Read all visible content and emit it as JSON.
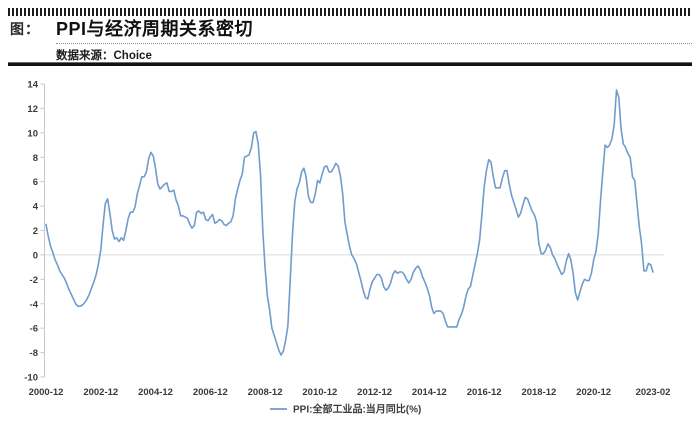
{
  "header": {
    "figure_label": "图：",
    "title": "PPI与经济周期关系密切",
    "source_label": "数据来源：",
    "source_value": "Choice"
  },
  "chart_data": {
    "type": "line",
    "series_name": "PPI:全部工业品:当月同比(%)",
    "x_start": "2000-12",
    "x_end": "2023-02",
    "x_tick_labels": [
      "2000-12",
      "2002-12",
      "2004-12",
      "2006-12",
      "2008-12",
      "2010-12",
      "2012-12",
      "2014-12",
      "2016-12",
      "2018-12",
      "2020-12",
      "2023-02"
    ],
    "y_ticks": [
      14,
      12,
      10,
      8,
      6,
      4,
      2,
      0,
      -2,
      -4,
      -6,
      -8,
      -10
    ],
    "ylim": [
      -10,
      14
    ],
    "grid": "zero-line-only",
    "legend_position": "bottom-center",
    "line_color": "#6f9ccd",
    "axis_color": "#c9c9c9",
    "grid_color": "#dcdcdc",
    "tick_label_color": "#3a3a3a",
    "values": [
      2.5,
      1.5,
      0.7,
      0.2,
      -0.4,
      -0.8,
      -1.3,
      -1.6,
      -1.9,
      -2.3,
      -2.8,
      -3.2,
      -3.6,
      -4.0,
      -4.2,
      -4.2,
      -4.1,
      -3.9,
      -3.6,
      -3.2,
      -2.7,
      -2.2,
      -1.6,
      -0.7,
      0.4,
      2.4,
      4.2,
      4.6,
      3.4,
      2.0,
      1.3,
      1.4,
      1.1,
      1.4,
      1.2,
      2.0,
      3.0,
      3.5,
      3.5,
      3.9,
      5.0,
      5.7,
      6.4,
      6.4,
      6.8,
      7.9,
      8.4,
      8.1,
      7.1,
      5.8,
      5.4,
      5.6,
      5.8,
      5.9,
      5.2,
      5.2,
      5.3,
      4.5,
      4.0,
      3.2,
      3.2,
      3.1,
      3.0,
      2.5,
      2.2,
      2.4,
      3.5,
      3.6,
      3.4,
      3.5,
      2.9,
      2.8,
      3.1,
      3.3,
      2.6,
      2.7,
      2.9,
      2.8,
      2.5,
      2.4,
      2.6,
      2.7,
      3.2,
      4.6,
      5.4,
      6.1,
      6.6,
      8.0,
      8.1,
      8.2,
      8.8,
      10.0,
      10.1,
      9.1,
      6.6,
      2.0,
      -1.1,
      -3.3,
      -4.5,
      -6.0,
      -6.6,
      -7.2,
      -7.8,
      -8.2,
      -7.9,
      -7.0,
      -5.8,
      -2.1,
      1.7,
      4.3,
      5.4,
      5.9,
      6.8,
      7.1,
      6.4,
      4.8,
      4.3,
      4.3,
      5.0,
      6.1,
      5.9,
      6.6,
      7.2,
      7.3,
      6.8,
      6.8,
      7.1,
      7.5,
      7.3,
      6.5,
      5.0,
      2.7,
      1.7,
      0.7,
      0.0,
      -0.3,
      -0.7,
      -1.4,
      -2.1,
      -2.9,
      -3.5,
      -3.6,
      -2.8,
      -2.2,
      -1.9,
      -1.6,
      -1.6,
      -1.9,
      -2.6,
      -2.9,
      -2.7,
      -2.3,
      -1.6,
      -1.3,
      -1.5,
      -1.4,
      -1.4,
      -1.6,
      -2.0,
      -2.3,
      -2.0,
      -1.4,
      -1.1,
      -0.9,
      -1.2,
      -1.8,
      -2.2,
      -2.7,
      -3.3,
      -4.3,
      -4.8,
      -4.6,
      -4.6,
      -4.6,
      -4.8,
      -5.4,
      -5.9,
      -5.9,
      -5.9,
      -5.9,
      -5.9,
      -5.3,
      -4.9,
      -4.3,
      -3.4,
      -2.8,
      -2.6,
      -1.7,
      -0.8,
      0.1,
      1.2,
      3.3,
      5.5,
      6.9,
      7.8,
      7.6,
      6.4,
      5.5,
      5.5,
      5.5,
      6.3,
      6.9,
      6.9,
      5.8,
      4.9,
      4.3,
      3.7,
      3.1,
      3.4,
      4.1,
      4.7,
      4.6,
      4.1,
      3.6,
      3.3,
      2.7,
      0.9,
      0.1,
      0.1,
      0.4,
      0.9,
      0.6,
      0.0,
      -0.3,
      -0.8,
      -1.2,
      -1.6,
      -1.4,
      -0.5,
      0.1,
      -0.4,
      -1.5,
      -3.1,
      -3.7,
      -3.0,
      -2.4,
      -2.0,
      -2.1,
      -2.1,
      -1.5,
      -0.4,
      0.3,
      1.7,
      4.4,
      6.8,
      9.0,
      8.8,
      9.0,
      9.5,
      10.7,
      13.5,
      12.9,
      10.3,
      9.1,
      8.8,
      8.3,
      8.0,
      6.4,
      6.1,
      4.2,
      2.3,
      0.9,
      -1.3,
      -1.3,
      -0.7,
      -0.8,
      -1.4
    ]
  }
}
